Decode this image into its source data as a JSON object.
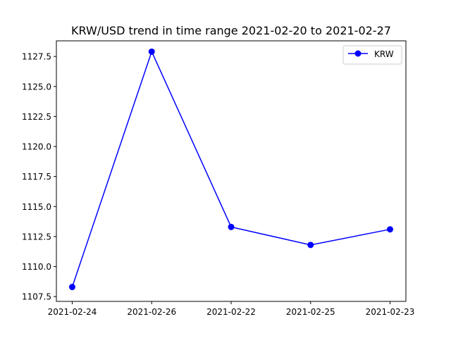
{
  "chart_data": {
    "type": "line",
    "title": "KRW/USD trend in time range 2021-02-20 to 2021-02-27",
    "xlabel": "",
    "ylabel": "",
    "categories": [
      "2021-02-24",
      "2021-02-26",
      "2021-02-22",
      "2021-02-25",
      "2021-02-23"
    ],
    "series": [
      {
        "name": "KRW",
        "values": [
          1108.3,
          1127.9,
          1113.3,
          1111.8,
          1113.1
        ],
        "color": "#0000ff",
        "marker": "circle"
      }
    ],
    "ylim": [
      1107.1,
      1128.8
    ],
    "yticks": [
      1107.5,
      1110.0,
      1112.5,
      1115.0,
      1117.5,
      1120.0,
      1122.5,
      1125.0,
      1127.5
    ],
    "ytick_labels": [
      "1107.5",
      "1110.0",
      "1112.5",
      "1115.0",
      "1117.5",
      "1120.0",
      "1122.5",
      "1125.0",
      "1127.5"
    ],
    "grid": false,
    "legend": {
      "placement": "top-right",
      "entries": [
        "KRW"
      ]
    }
  }
}
